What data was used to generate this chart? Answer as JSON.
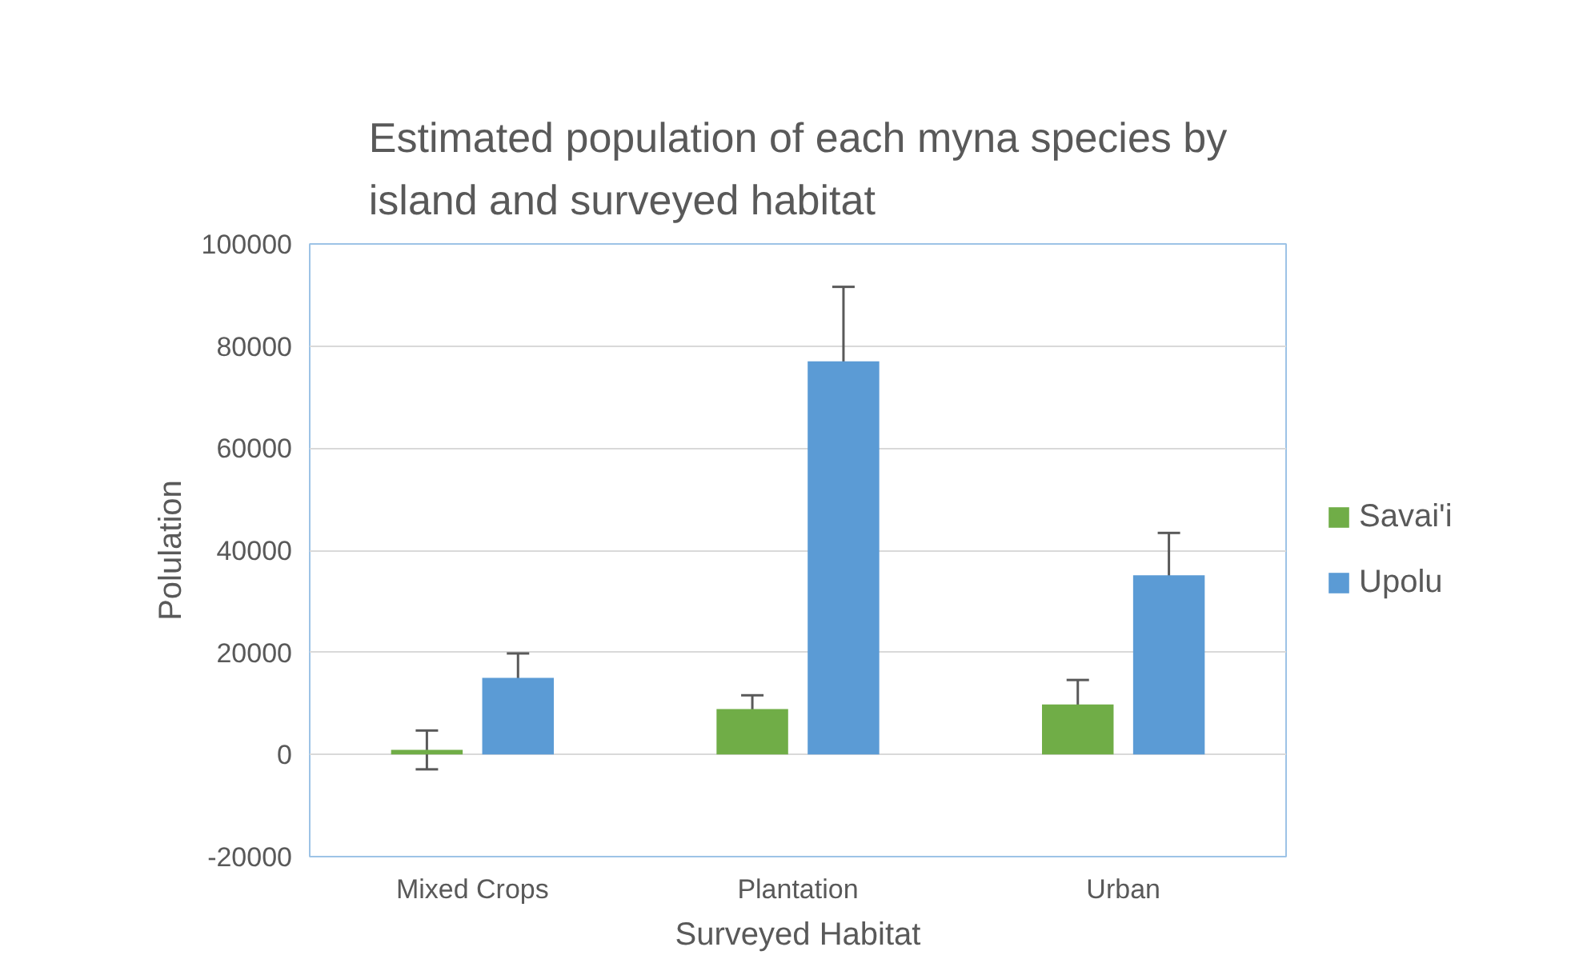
{
  "chart_data": {
    "type": "bar",
    "title": "Estimated population of each myna species by island and surveyed habitat",
    "xlabel": "Surveyed Habitat",
    "ylabel": "Polulation",
    "categories": [
      "Mixed Crops",
      "Plantation",
      "Urban"
    ],
    "series": [
      {
        "name": "Savai'i",
        "color": "#70ad47",
        "values": [
          900,
          8900,
          9800
        ],
        "errors": [
          3800,
          2700,
          4800
        ]
      },
      {
        "name": "Upolu",
        "color": "#5b9bd5",
        "values": [
          15000,
          77000,
          35100
        ],
        "errors": [
          4800,
          14600,
          8300
        ]
      }
    ],
    "ylim": [
      -20000,
      100000
    ],
    "yticks": [
      -20000,
      0,
      20000,
      40000,
      60000,
      80000,
      100000
    ],
    "grid": "y",
    "legend": "right"
  }
}
